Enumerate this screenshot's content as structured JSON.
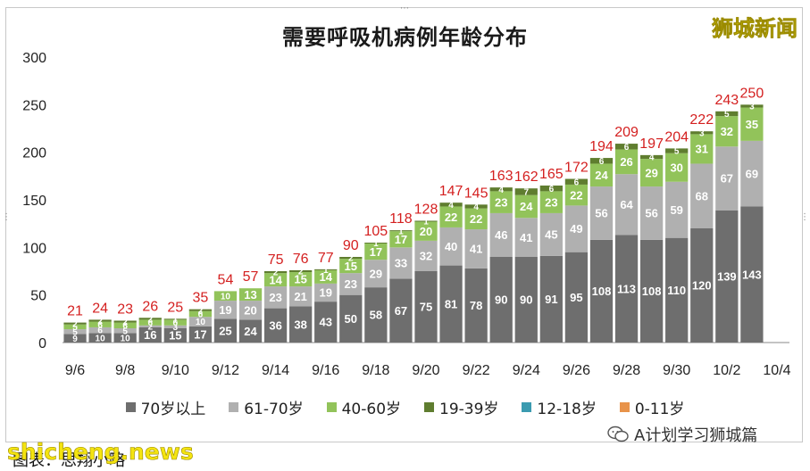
{
  "brand": "狮城新闻",
  "watermark_left": "shicheng.news",
  "watermark_right": "A计划学习狮城篇",
  "caption": "图表：思翔小略",
  "icons": {
    "wechat": "wechat-icon"
  },
  "chart_data": {
    "type": "bar",
    "stacked": true,
    "title": "需要呼吸机病例年龄分布",
    "xlabel": "",
    "ylabel": "",
    "ylim": [
      0,
      300
    ],
    "yticks": [
      "0",
      "50",
      "100",
      "150",
      "200",
      "250",
      "300"
    ],
    "x_tick_labels": [
      "9/6",
      "9/8",
      "9/10",
      "9/12",
      "9/14",
      "9/16",
      "9/18",
      "9/20",
      "9/22",
      "9/24",
      "9/26",
      "9/28",
      "9/30",
      "10/2",
      "10/4"
    ],
    "grid": false,
    "legend_position": "bottom",
    "categories": [
      "9/6",
      "9/7",
      "9/8",
      "9/9",
      "9/10",
      "9/11",
      "9/12",
      "9/13",
      "9/14",
      "9/15",
      "9/16",
      "9/17",
      "9/18",
      "9/19",
      "9/20",
      "9/21",
      "9/22",
      "9/23",
      "9/24",
      "9/25",
      "9/26",
      "9/27",
      "9/28",
      "9/29",
      "9/30",
      "10/1",
      "10/2",
      "10/3",
      "10/4"
    ],
    "totals": [
      21,
      24,
      23,
      26,
      25,
      35,
      54,
      57,
      75,
      76,
      77,
      90,
      105,
      118,
      128,
      147,
      145,
      163,
      162,
      165,
      172,
      194,
      209,
      197,
      204,
      222,
      243,
      250,
      null
    ],
    "series": [
      {
        "name": "70岁以上",
        "color": "#6e6e6e",
        "values": [
          9,
          10,
          10,
          16,
          15,
          17,
          25,
          24,
          36,
          38,
          43,
          50,
          58,
          67,
          75,
          81,
          78,
          90,
          90,
          91,
          95,
          108,
          113,
          108,
          110,
          120,
          139,
          143,
          null
        ]
      },
      {
        "name": "61-70岁",
        "color": "#b0b0b0",
        "values": [
          5,
          6,
          5,
          2,
          3,
          10,
          19,
          20,
          23,
          21,
          19,
          23,
          29,
          33,
          32,
          40,
          41,
          46,
          41,
          45,
          49,
          56,
          64,
          56,
          59,
          68,
          67,
          69,
          null
        ]
      },
      {
        "name": "40-60岁",
        "color": "#92c35a",
        "values": [
          5,
          6,
          6,
          6,
          6,
          6,
          10,
          13,
          14,
          15,
          14,
          15,
          17,
          17,
          20,
          22,
          22,
          23,
          24,
          23,
          22,
          24,
          26,
          29,
          30,
          31,
          32,
          35,
          null
        ]
      },
      {
        "name": "19-39岁",
        "color": "#5f7d2f",
        "values": [
          2,
          2,
          2,
          2,
          1,
          2,
          0,
          0,
          2,
          2,
          1,
          2,
          1,
          1,
          1,
          4,
          4,
          4,
          7,
          6,
          6,
          6,
          6,
          4,
          5,
          3,
          5,
          3,
          null
        ]
      },
      {
        "name": "12-18岁",
        "color": "#3b9bb0",
        "values": [
          0,
          0,
          0,
          0,
          0,
          0,
          0,
          0,
          0,
          0,
          0,
          0,
          0,
          0,
          0,
          0,
          0,
          0,
          0,
          0,
          0,
          0,
          0,
          0,
          0,
          0,
          0,
          0,
          null
        ]
      },
      {
        "name": "0-11岁",
        "color": "#e8934a",
        "values": [
          0,
          0,
          0,
          0,
          0,
          0,
          0,
          0,
          0,
          0,
          0,
          0,
          0,
          0,
          0,
          0,
          0,
          0,
          0,
          0,
          0,
          0,
          0,
          0,
          0,
          0,
          0,
          0,
          null
        ]
      }
    ],
    "segment_labels": [
      [
        "9",
        "10",
        "10",
        "16",
        "15",
        "17",
        "25",
        "24",
        "36",
        "38",
        "43",
        "50",
        "58",
        "67",
        "75",
        "81",
        "78",
        "90",
        "90",
        "91",
        "95",
        "108",
        "113",
        "108",
        "110",
        "120",
        "139",
        "143",
        ""
      ],
      [
        "5",
        "6",
        "5",
        "2",
        "3",
        "10",
        "19",
        "20",
        "23",
        "21",
        "19",
        "23",
        "29",
        "33",
        "32",
        "40",
        "41",
        "46",
        "41",
        "45",
        "49",
        "56",
        "64",
        "56",
        "59",
        "68",
        "67",
        "69",
        ""
      ],
      [
        "5",
        "6",
        "6",
        "6",
        "6",
        "6",
        "10",
        "13",
        "14",
        "15",
        "14",
        "15",
        "17",
        "17",
        "20",
        "22",
        "22",
        "23",
        "24",
        "23",
        "22",
        "24",
        "26",
        "29",
        "30",
        "31",
        "32",
        "35",
        ""
      ],
      [
        "2",
        "2",
        "2",
        "2",
        "1",
        "2",
        "",
        "",
        "2",
        "2",
        "1",
        "2",
        "1",
        "1",
        "1",
        "4",
        "4",
        "4",
        "7",
        "6",
        "6",
        "6",
        "6",
        "4",
        "5",
        "3",
        "5",
        "3",
        ""
      ]
    ]
  }
}
